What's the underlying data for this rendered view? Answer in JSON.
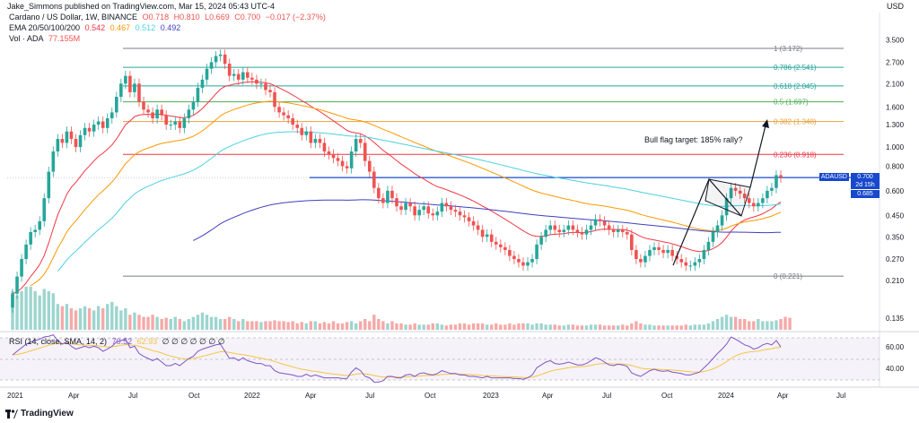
{
  "header": {
    "published": "Jake_Simmons published on TradingView.com, Mar 15, 2024 05:43 UTC-4",
    "currency": "USD"
  },
  "legend": {
    "symbol": "Cardano / US Dollar, 1W, BINANCE",
    "ohlc": {
      "O": "O0.718",
      "H": "H0.810",
      "L": "L0.669",
      "C": "C0.700",
      "chg": "−0.017 (−2.37%)"
    },
    "ema_label": "EMA 20/50/100/200",
    "ema_values": [
      "0.542",
      "0.467",
      "0.512",
      "0.492"
    ],
    "vol_label": "Vol · ADA",
    "vol_value": "77.155M",
    "rsi_label": "RSI (14, close, SMA, 14, 2)",
    "rsi_values": [
      "70.52",
      "62.93"
    ],
    "rsi_placeholders": "∅ ∅ ∅ ∅ ∅ ∅ ∅"
  },
  "colors": {
    "up": "#26a69a",
    "down": "#ef5350",
    "ema20": "#f23645",
    "ema50": "#ff9800",
    "ema100": "#4dd0e1",
    "ema200": "#3f3fbf",
    "support": "#1848cc",
    "rsi": "#7e57c2",
    "rsi_ma": "#f5c542"
  },
  "annotation": "Bull flag target: 185% rally?",
  "footer_brand": "TradingView",
  "chart_data": {
    "type": "candlestick",
    "y_scale": "log",
    "ylim": [
      0.118,
      3.75
    ],
    "y_ticks": [
      "3.500",
      "2.700",
      "2.100",
      "1.600",
      "1.300",
      "1.000",
      "0.800",
      "0.600",
      "0.450",
      "0.350",
      "0.270",
      "0.210",
      "0.135"
    ],
    "x_ticks": [
      "2021",
      "Apr",
      "Jul",
      "Oct",
      "2022",
      "Apr",
      "Jul",
      "Oct",
      "2023",
      "Apr",
      "Jul",
      "Oct",
      "2024",
      "Apr",
      "Jul"
    ],
    "fib_levels": [
      {
        "label": "1 (3.172)",
        "value": 3.172,
        "color": "#787b86"
      },
      {
        "label": "0.786 (2.541)",
        "value": 2.541,
        "color": "#26a69a"
      },
      {
        "label": "0.618 (2.045)",
        "value": 2.045,
        "color": "#26a69a"
      },
      {
        "label": "0.5 (1.697)",
        "value": 1.697,
        "color": "#4caf50"
      },
      {
        "label": "0.382 (1.348)",
        "value": 1.348,
        "color": "#e6a23c"
      },
      {
        "label": "0.236 (0.918)",
        "value": 0.918,
        "color": "#f23645"
      },
      {
        "label": "0 (0.221)",
        "value": 0.221,
        "color": "#787b86"
      }
    ],
    "support_level": 0.7,
    "last_price": {
      "symbol": "ADAUSD",
      "price": "0.700",
      "countdown": "2d 15h",
      "ema_tag": "0.685"
    },
    "closes": [
      0.18,
      0.22,
      0.27,
      0.32,
      0.37,
      0.38,
      0.42,
      0.55,
      0.75,
      0.95,
      1.1,
      1.05,
      1.2,
      1.1,
      1.0,
      1.15,
      1.25,
      1.2,
      1.3,
      1.35,
      1.25,
      1.4,
      1.5,
      1.8,
      2.1,
      2.3,
      1.9,
      2.1,
      1.7,
      1.55,
      1.5,
      1.4,
      1.55,
      1.45,
      1.3,
      1.3,
      1.35,
      1.25,
      1.4,
      1.55,
      1.7,
      2.0,
      2.2,
      2.5,
      2.7,
      2.9,
      2.95,
      2.65,
      2.3,
      2.35,
      2.2,
      2.4,
      2.25,
      2.2,
      2.1,
      2.1,
      1.95,
      1.9,
      1.6,
      1.5,
      1.45,
      1.4,
      1.3,
      1.25,
      1.15,
      1.2,
      1.05,
      1.1,
      1.05,
      0.95,
      0.92,
      0.88,
      0.85,
      0.8,
      0.78,
      0.95,
      1.1,
      1.05,
      0.85,
      0.75,
      0.62,
      0.55,
      0.52,
      0.6,
      0.55,
      0.5,
      0.48,
      0.52,
      0.5,
      0.45,
      0.48,
      0.5,
      0.46,
      0.45,
      0.47,
      0.52,
      0.5,
      0.48,
      0.47,
      0.45,
      0.44,
      0.42,
      0.4,
      0.38,
      0.35,
      0.36,
      0.33,
      0.32,
      0.31,
      0.3,
      0.28,
      0.27,
      0.26,
      0.25,
      0.26,
      0.27,
      0.32,
      0.35,
      0.38,
      0.4,
      0.38,
      0.37,
      0.38,
      0.4,
      0.38,
      0.37,
      0.36,
      0.38,
      0.4,
      0.43,
      0.42,
      0.4,
      0.38,
      0.37,
      0.38,
      0.37,
      0.36,
      0.3,
      0.27,
      0.26,
      0.28,
      0.3,
      0.31,
      0.3,
      0.29,
      0.3,
      0.28,
      0.27,
      0.26,
      0.25,
      0.25,
      0.26,
      0.27,
      0.3,
      0.33,
      0.37,
      0.4,
      0.45,
      0.55,
      0.62,
      0.6,
      0.58,
      0.55,
      0.52,
      0.5,
      0.52,
      0.55,
      0.6,
      0.62,
      0.72,
      0.7
    ],
    "volumes": [
      0.9,
      0.8,
      0.9,
      1.0,
      1.0,
      0.9,
      0.8,
      0.95,
      0.9,
      0.85,
      0.6,
      0.55,
      0.6,
      0.5,
      0.45,
      0.5,
      0.55,
      0.5,
      0.45,
      0.55,
      0.5,
      0.6,
      0.65,
      0.55,
      0.45,
      0.5,
      0.35,
      0.4,
      0.35,
      0.3,
      0.3,
      0.35,
      0.3,
      0.25,
      0.28,
      0.25,
      0.3,
      0.25,
      0.2,
      0.25,
      0.3,
      0.35,
      0.4,
      0.35,
      0.3,
      0.3,
      0.25,
      0.25,
      0.3,
      0.25,
      0.2,
      0.25,
      0.2,
      0.2,
      0.2,
      0.18,
      0.2,
      0.2,
      0.22,
      0.2,
      0.2,
      0.18,
      0.2,
      0.15,
      0.18,
      0.15,
      0.2,
      0.2,
      0.15,
      0.18,
      0.15,
      0.2,
      0.15,
      0.15,
      0.18,
      0.2,
      0.15,
      0.2,
      0.25,
      0.2,
      0.35,
      0.25,
      0.2,
      0.15,
      0.2,
      0.15,
      0.15,
      0.12,
      0.12,
      0.15,
      0.12,
      0.12,
      0.12,
      0.15,
      0.15,
      0.12,
      0.1,
      0.12,
      0.12,
      0.15,
      0.15,
      0.12,
      0.15,
      0.15,
      0.15,
      0.12,
      0.12,
      0.15,
      0.12,
      0.12,
      0.15,
      0.12,
      0.15,
      0.15,
      0.15,
      0.12,
      0.15,
      0.15,
      0.12,
      0.12,
      0.12,
      0.1,
      0.1,
      0.12,
      0.12,
      0.1,
      0.1,
      0.1,
      0.12,
      0.12,
      0.12,
      0.1,
      0.1,
      0.1,
      0.1,
      0.12,
      0.1,
      0.15,
      0.2,
      0.15,
      0.12,
      0.12,
      0.1,
      0.1,
      0.1,
      0.1,
      0.1,
      0.1,
      0.1,
      0.12,
      0.1,
      0.12,
      0.12,
      0.12,
      0.15,
      0.2,
      0.25,
      0.3,
      0.35,
      0.3,
      0.3,
      0.25,
      0.25,
      0.2,
      0.2,
      0.25,
      0.2,
      0.2,
      0.2,
      0.22,
      0.25,
      0.3,
      0.28
    ],
    "rsi": [
      60,
      65,
      70,
      75,
      78,
      80,
      82,
      85,
      86,
      88,
      80,
      75,
      78,
      72,
      68,
      70,
      72,
      70,
      72,
      70,
      65,
      68,
      72,
      78,
      80,
      82,
      70,
      72,
      62,
      58,
      55,
      52,
      55,
      50,
      45,
      45,
      48,
      45,
      50,
      55,
      58,
      65,
      68,
      70,
      72,
      74,
      75,
      65,
      55,
      56,
      52,
      56,
      52,
      50,
      48,
      48,
      45,
      45,
      38,
      35,
      34,
      33,
      32,
      30,
      30,
      33,
      30,
      32,
      30,
      28,
      28,
      28,
      28,
      27,
      27,
      36,
      42,
      38,
      30,
      28,
      22,
      22,
      24,
      30,
      30,
      28,
      28,
      32,
      33,
      30,
      34,
      35,
      33,
      32,
      34,
      38,
      36,
      34,
      34,
      32,
      32,
      30,
      30,
      29,
      28,
      30,
      28,
      28,
      28,
      28,
      28,
      27,
      27,
      26,
      28,
      32,
      42,
      46,
      50,
      52,
      48,
      47,
      48,
      50,
      48,
      46,
      46,
      48,
      52,
      56,
      54,
      50,
      46,
      45,
      47,
      46,
      44,
      35,
      32,
      30,
      34,
      38,
      40,
      38,
      37,
      38,
      36,
      35,
      34,
      32,
      32,
      34,
      36,
      42,
      48,
      55,
      62,
      68,
      75,
      85,
      82,
      78,
      74,
      72,
      68,
      70,
      74,
      76,
      74,
      80,
      71
    ],
    "rsi_ticks": [
      "60.00",
      "40.00"
    ]
  }
}
